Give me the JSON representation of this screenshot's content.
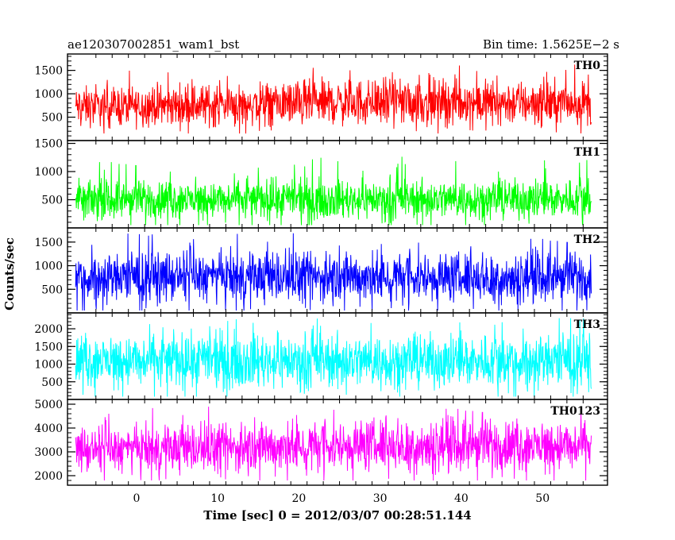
{
  "header": {
    "title": "ae120307002851_wam1_bst",
    "bin_time": "Bin time: 1.5625E−2 s"
  },
  "xaxis": {
    "label": "Time [sec] 0 = 2012/03/07 00:28:51.144",
    "ticks": [
      "0",
      "10",
      "20",
      "30",
      "40",
      "50"
    ]
  },
  "yaxis_label": "Counts/sec",
  "chart_data": {
    "type": "line",
    "title": "ae120307002851_wam1_bst",
    "subtitle": "Bin time: 1.5625E−2 s",
    "xlabel": "Time [sec] 0 = 2012/03/07 00:28:51.144",
    "ylabel": "Counts/sec",
    "xlim": [
      -8.5,
      58
    ],
    "data_xrange": [
      -7.5,
      56
    ],
    "grid": false,
    "legend": "none",
    "panels": [
      {
        "name": "TH0",
        "color": "#ff0000",
        "ylim": [
          0,
          1850
        ],
        "yticks": [
          500,
          1000,
          1500
        ],
        "ytick_labels": [
          "500",
          "1000",
          "1500"
        ],
        "approx_mean": [
          [
            -7.5,
            720
          ],
          [
            10,
            760
          ],
          [
            30,
            830
          ],
          [
            56,
            800
          ]
        ],
        "approx_envelope": [
          150,
          1650
        ]
      },
      {
        "name": "TH1",
        "color": "#00ff00",
        "ylim": [
          0,
          1550
        ],
        "yticks": [
          500,
          1000,
          1500
        ],
        "ytick_labels": [
          "500",
          "1000",
          "1500"
        ],
        "approx_mean": [
          [
            -7.5,
            500
          ],
          [
            56,
            520
          ]
        ],
        "approx_envelope": [
          50,
          1450
        ]
      },
      {
        "name": "TH2",
        "color": "#0000ff",
        "ylim": [
          0,
          1800
        ],
        "yticks": [
          500,
          1000,
          1500
        ],
        "ytick_labels": [
          "500",
          "1000",
          "1500"
        ],
        "approx_mean": [
          [
            -7.5,
            750
          ],
          [
            56,
            760
          ]
        ],
        "approx_envelope": [
          50,
          1750
        ]
      },
      {
        "name": "TH3",
        "color": "#00ffff",
        "ylim": [
          0,
          2450
        ],
        "yticks": [
          500,
          1000,
          1500,
          2000
        ],
        "ytick_labels": [
          "500",
          "1000",
          "1500",
          "2000"
        ],
        "approx_mean": [
          [
            -7.5,
            1100
          ],
          [
            56,
            1100
          ]
        ],
        "approx_envelope": [
          80,
          2300
        ]
      },
      {
        "name": "TH0123",
        "color": "#ff00ff",
        "ylim": [
          1600,
          5200
        ],
        "yticks": [
          2000,
          3000,
          4000,
          5000
        ],
        "ytick_labels": [
          "2000",
          "3000",
          "4000",
          "5000"
        ],
        "approx_mean": [
          [
            -7.5,
            3050
          ],
          [
            10,
            3150
          ],
          [
            30,
            3300
          ],
          [
            56,
            3250
          ]
        ],
        "approx_envelope": [
          1800,
          5000
        ]
      }
    ]
  }
}
